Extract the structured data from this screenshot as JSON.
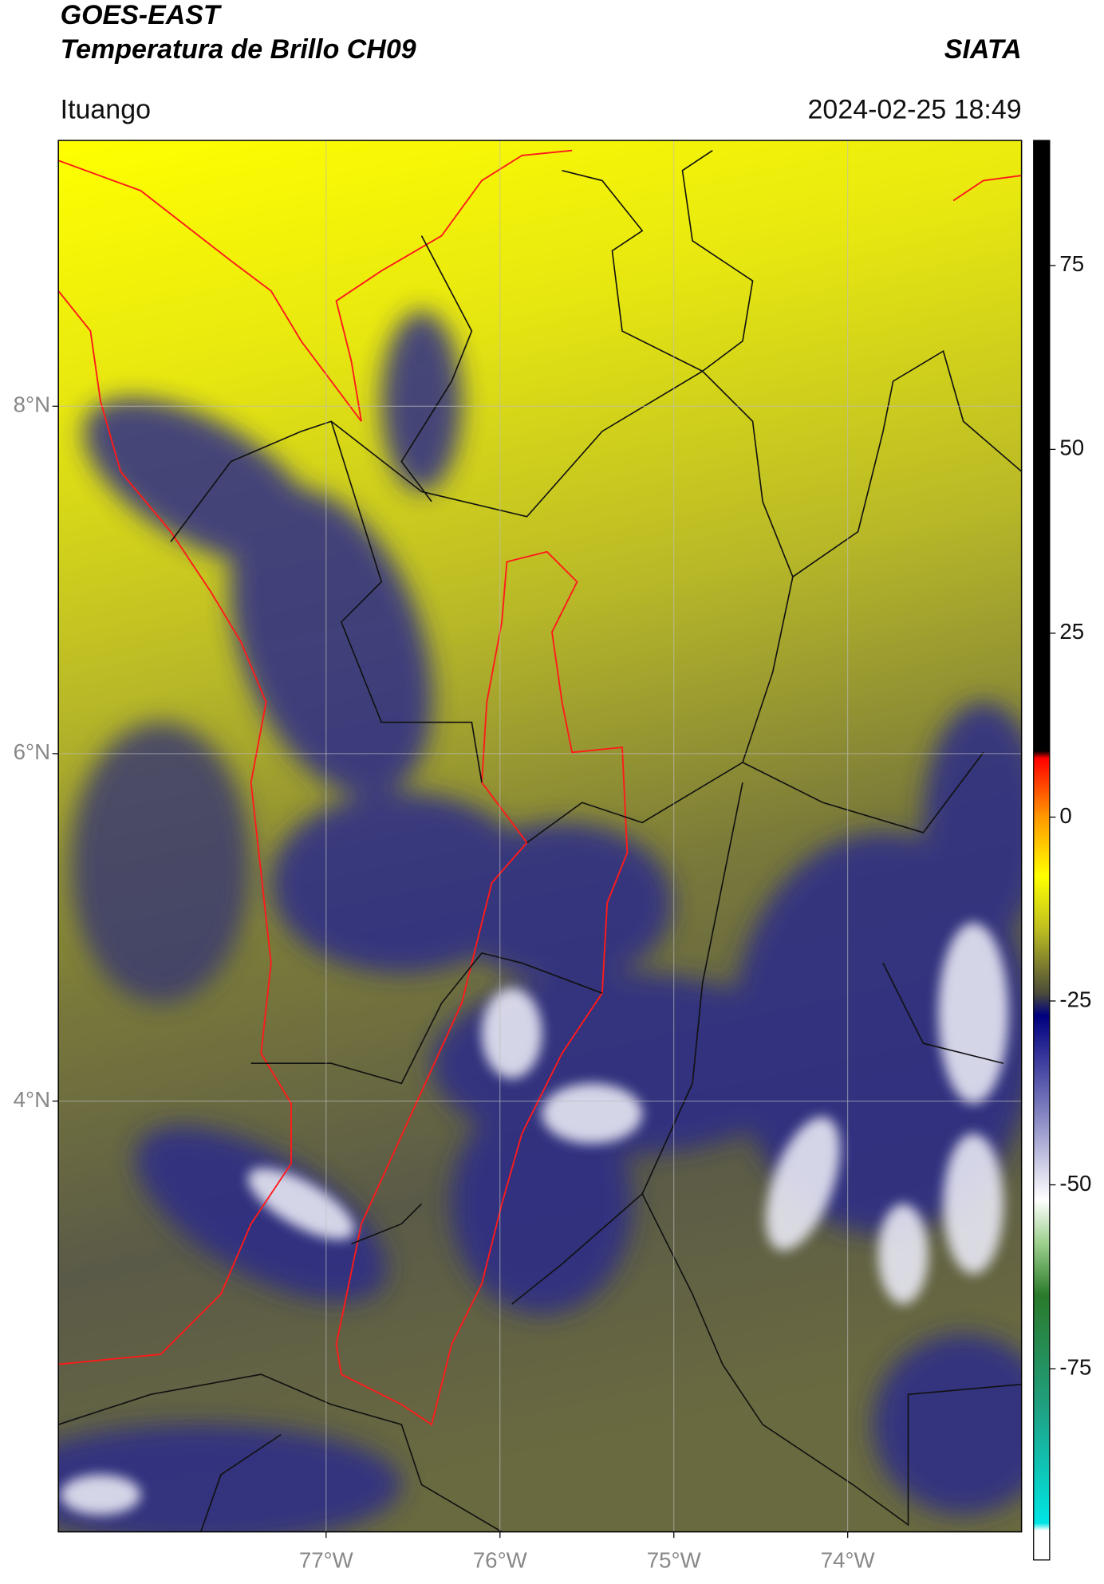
{
  "header": {
    "title": "GOES-EAST",
    "subtitle": "Temperatura de Brillo CH09",
    "source": "SIATA",
    "region": "Ituango",
    "datetime": "2024-02-25 18:49"
  },
  "map": {
    "xlim": [
      -78.54,
      -73.0
    ],
    "ylim": [
      1.52,
      9.53
    ],
    "xticks": [
      {
        "value": -77,
        "label": "77°W"
      },
      {
        "value": -76,
        "label": "76°W"
      },
      {
        "value": -75,
        "label": "75°W"
      },
      {
        "value": -74,
        "label": "74°W"
      }
    ],
    "yticks": [
      {
        "value": 8,
        "label": "8°N"
      },
      {
        "value": 6,
        "label": "6°N"
      },
      {
        "value": 4,
        "label": "4°N"
      }
    ],
    "grid": true
  },
  "colorbar": {
    "lim": [
      -101,
      92
    ],
    "ticks": [
      75,
      50,
      25,
      0,
      -25,
      -50,
      -75
    ],
    "stops": [
      {
        "value": -101,
        "color": "#ffffff"
      },
      {
        "value": -97,
        "color": "#ffffff"
      },
      {
        "value": -96,
        "color": "#00e5e5"
      },
      {
        "value": -80,
        "color": "#20a080"
      },
      {
        "value": -65,
        "color": "#2a7a2a"
      },
      {
        "value": -58,
        "color": "#9ccf8c"
      },
      {
        "value": -52,
        "color": "#ffffff"
      },
      {
        "value": -40,
        "color": "#8080c0"
      },
      {
        "value": -27,
        "color": "#000080"
      },
      {
        "value": -24,
        "color": "#4a4a3a"
      },
      {
        "value": -15,
        "color": "#c0c020"
      },
      {
        "value": -8,
        "color": "#ffff00"
      },
      {
        "value": 0,
        "color": "#ff9900"
      },
      {
        "value": 8,
        "color": "#ff0000"
      },
      {
        "value": 9,
        "color": "#000000"
      },
      {
        "value": 92,
        "color": "#000000"
      }
    ]
  }
}
